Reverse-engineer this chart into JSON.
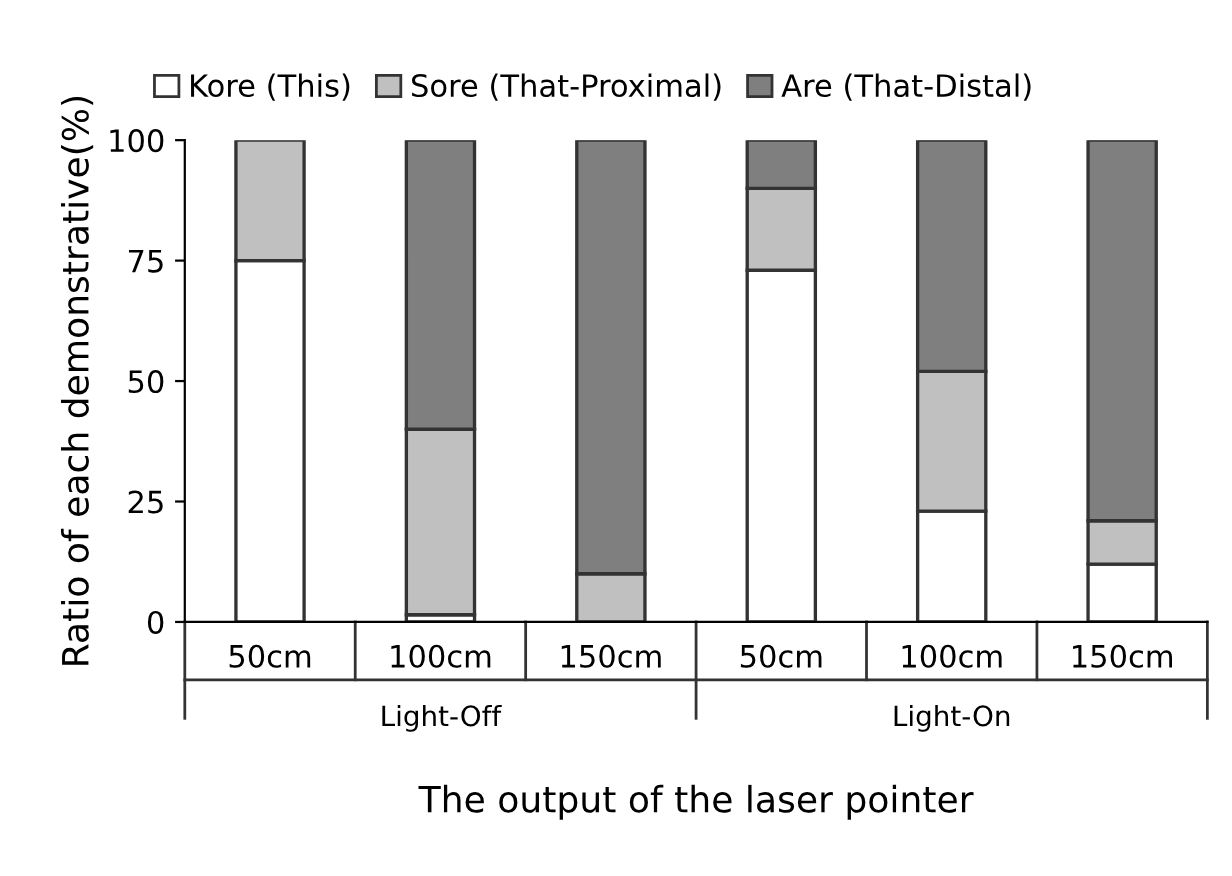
{
  "chart_data": {
    "type": "bar",
    "stacked": true,
    "categories": [
      "50cm",
      "100cm",
      "150cm",
      "50cm",
      "100cm",
      "150cm"
    ],
    "series": [
      {
        "name": "Kore (This)",
        "color": "#ffffff",
        "values": [
          75,
          1.5,
          null,
          73,
          23,
          12
        ]
      },
      {
        "name": "Sore (That-Proximal)",
        "color": "#c0c0c0",
        "values": [
          25,
          38.5,
          10,
          17,
          29,
          9
        ]
      },
      {
        "name": "Are (That-Distal)",
        "color": "#7f7f7f",
        "values": [
          null,
          60,
          90,
          10,
          48,
          79
        ]
      }
    ],
    "ylim": [
      0,
      100
    ],
    "yticks": [
      0,
      25,
      50,
      75,
      100
    ],
    "ylabel": "Ratio of each demonstrative(%)",
    "xlabel": "The output of the laser pointer",
    "annotations": [
      "Light-Off",
      "Light-On"
    ],
    "legend": "top",
    "grid": false
  }
}
